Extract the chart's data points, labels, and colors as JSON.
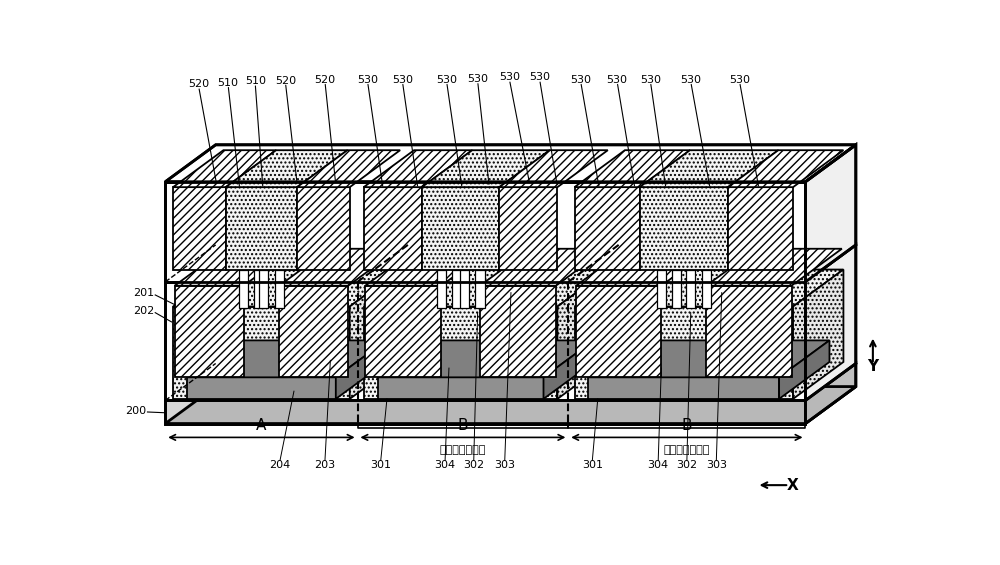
{
  "bg_color": "#ffffff",
  "fig_width": 10.0,
  "fig_height": 5.65,
  "dpi": 100,
  "labels": {
    "201": "201",
    "202": "202",
    "200": "200",
    "204": "204",
    "203": "203",
    "301a": "301",
    "304a": "304",
    "302a": "302",
    "303a": "303",
    "301b": "301",
    "304b": "304",
    "302b": "302",
    "303b": "303",
    "A": "A",
    "B1": "B",
    "B2": "B",
    "level1": "第一级第二单元",
    "level2": "第二级第二单元",
    "X": "X",
    "Y": "Y"
  },
  "top_labels": [
    [
      "520",
      95,
      15,
      118,
      148
    ],
    [
      "510",
      133,
      13,
      148,
      155
    ],
    [
      "510",
      168,
      11,
      178,
      155
    ],
    [
      "520",
      207,
      10,
      222,
      148
    ],
    [
      "520",
      258,
      9,
      272,
      150
    ],
    [
      "530",
      313,
      9,
      333,
      155
    ],
    [
      "530",
      358,
      9,
      378,
      155
    ],
    [
      "530",
      415,
      9,
      435,
      155
    ],
    [
      "530",
      455,
      8,
      470,
      153
    ],
    [
      "530",
      496,
      6,
      522,
      148
    ],
    [
      "530",
      535,
      6,
      558,
      153
    ],
    [
      "530",
      588,
      9,
      612,
      155
    ],
    [
      "530",
      635,
      9,
      658,
      155
    ],
    [
      "530",
      678,
      9,
      698,
      155
    ],
    [
      "530",
      730,
      9,
      755,
      155
    ],
    [
      "530",
      793,
      9,
      818,
      155
    ]
  ]
}
